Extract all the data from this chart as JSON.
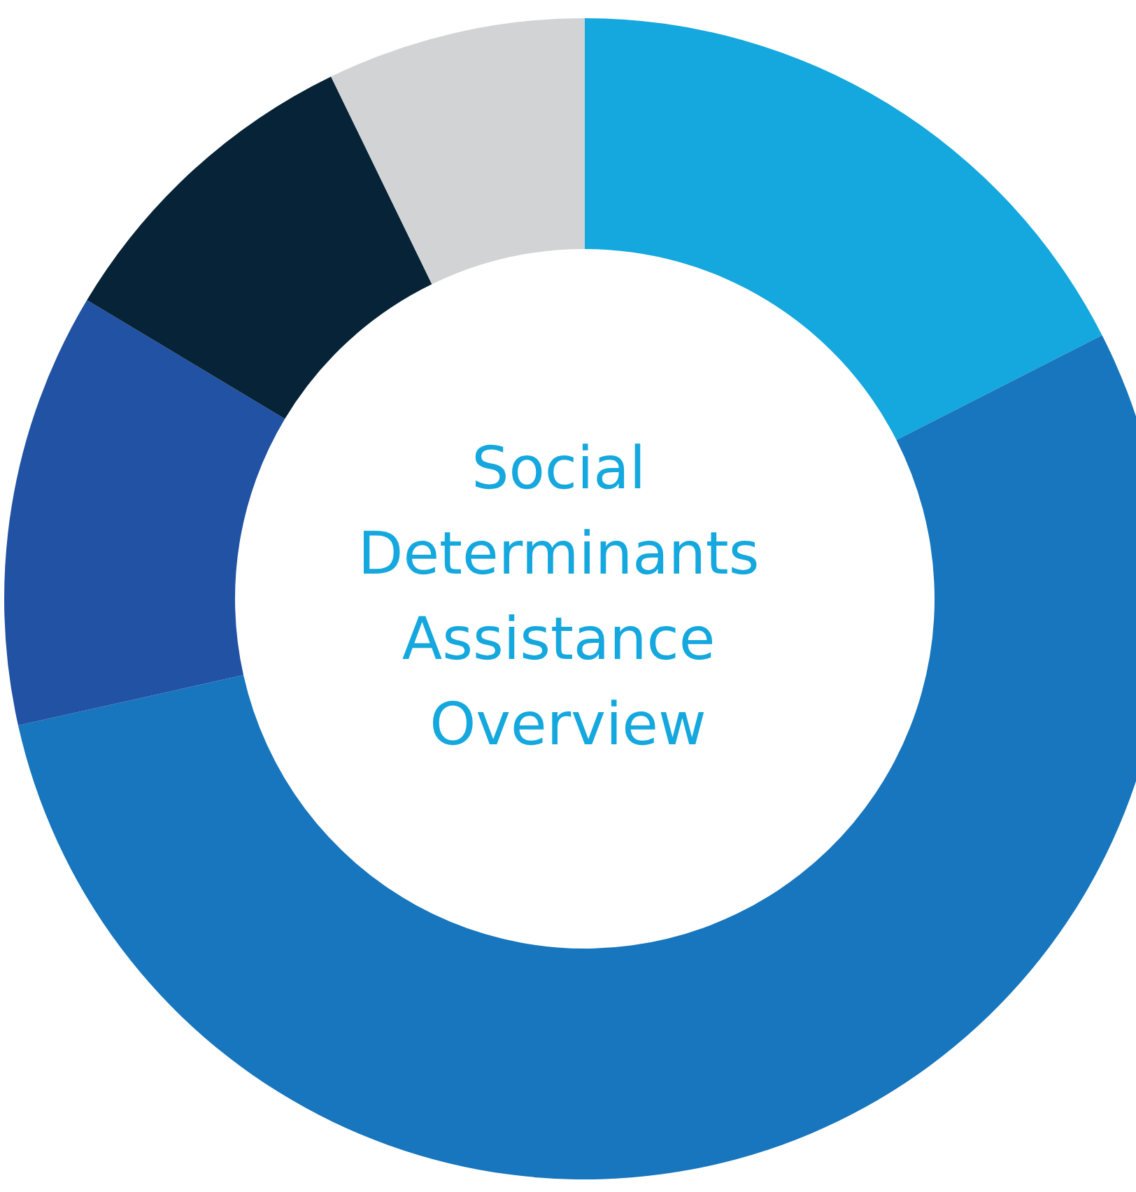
{
  "chart_data": {
    "type": "donut",
    "title": "Social Determinants Assistance Overview",
    "categories": [
      null,
      null,
      null,
      null,
      null
    ],
    "values": [
      17.5,
      54,
      12.1,
      9.2,
      7.2
    ],
    "colors": [
      "#14a8de",
      "#1776bd",
      "#2152a3",
      "#062337",
      "#d1d3d4"
    ]
  }
}
